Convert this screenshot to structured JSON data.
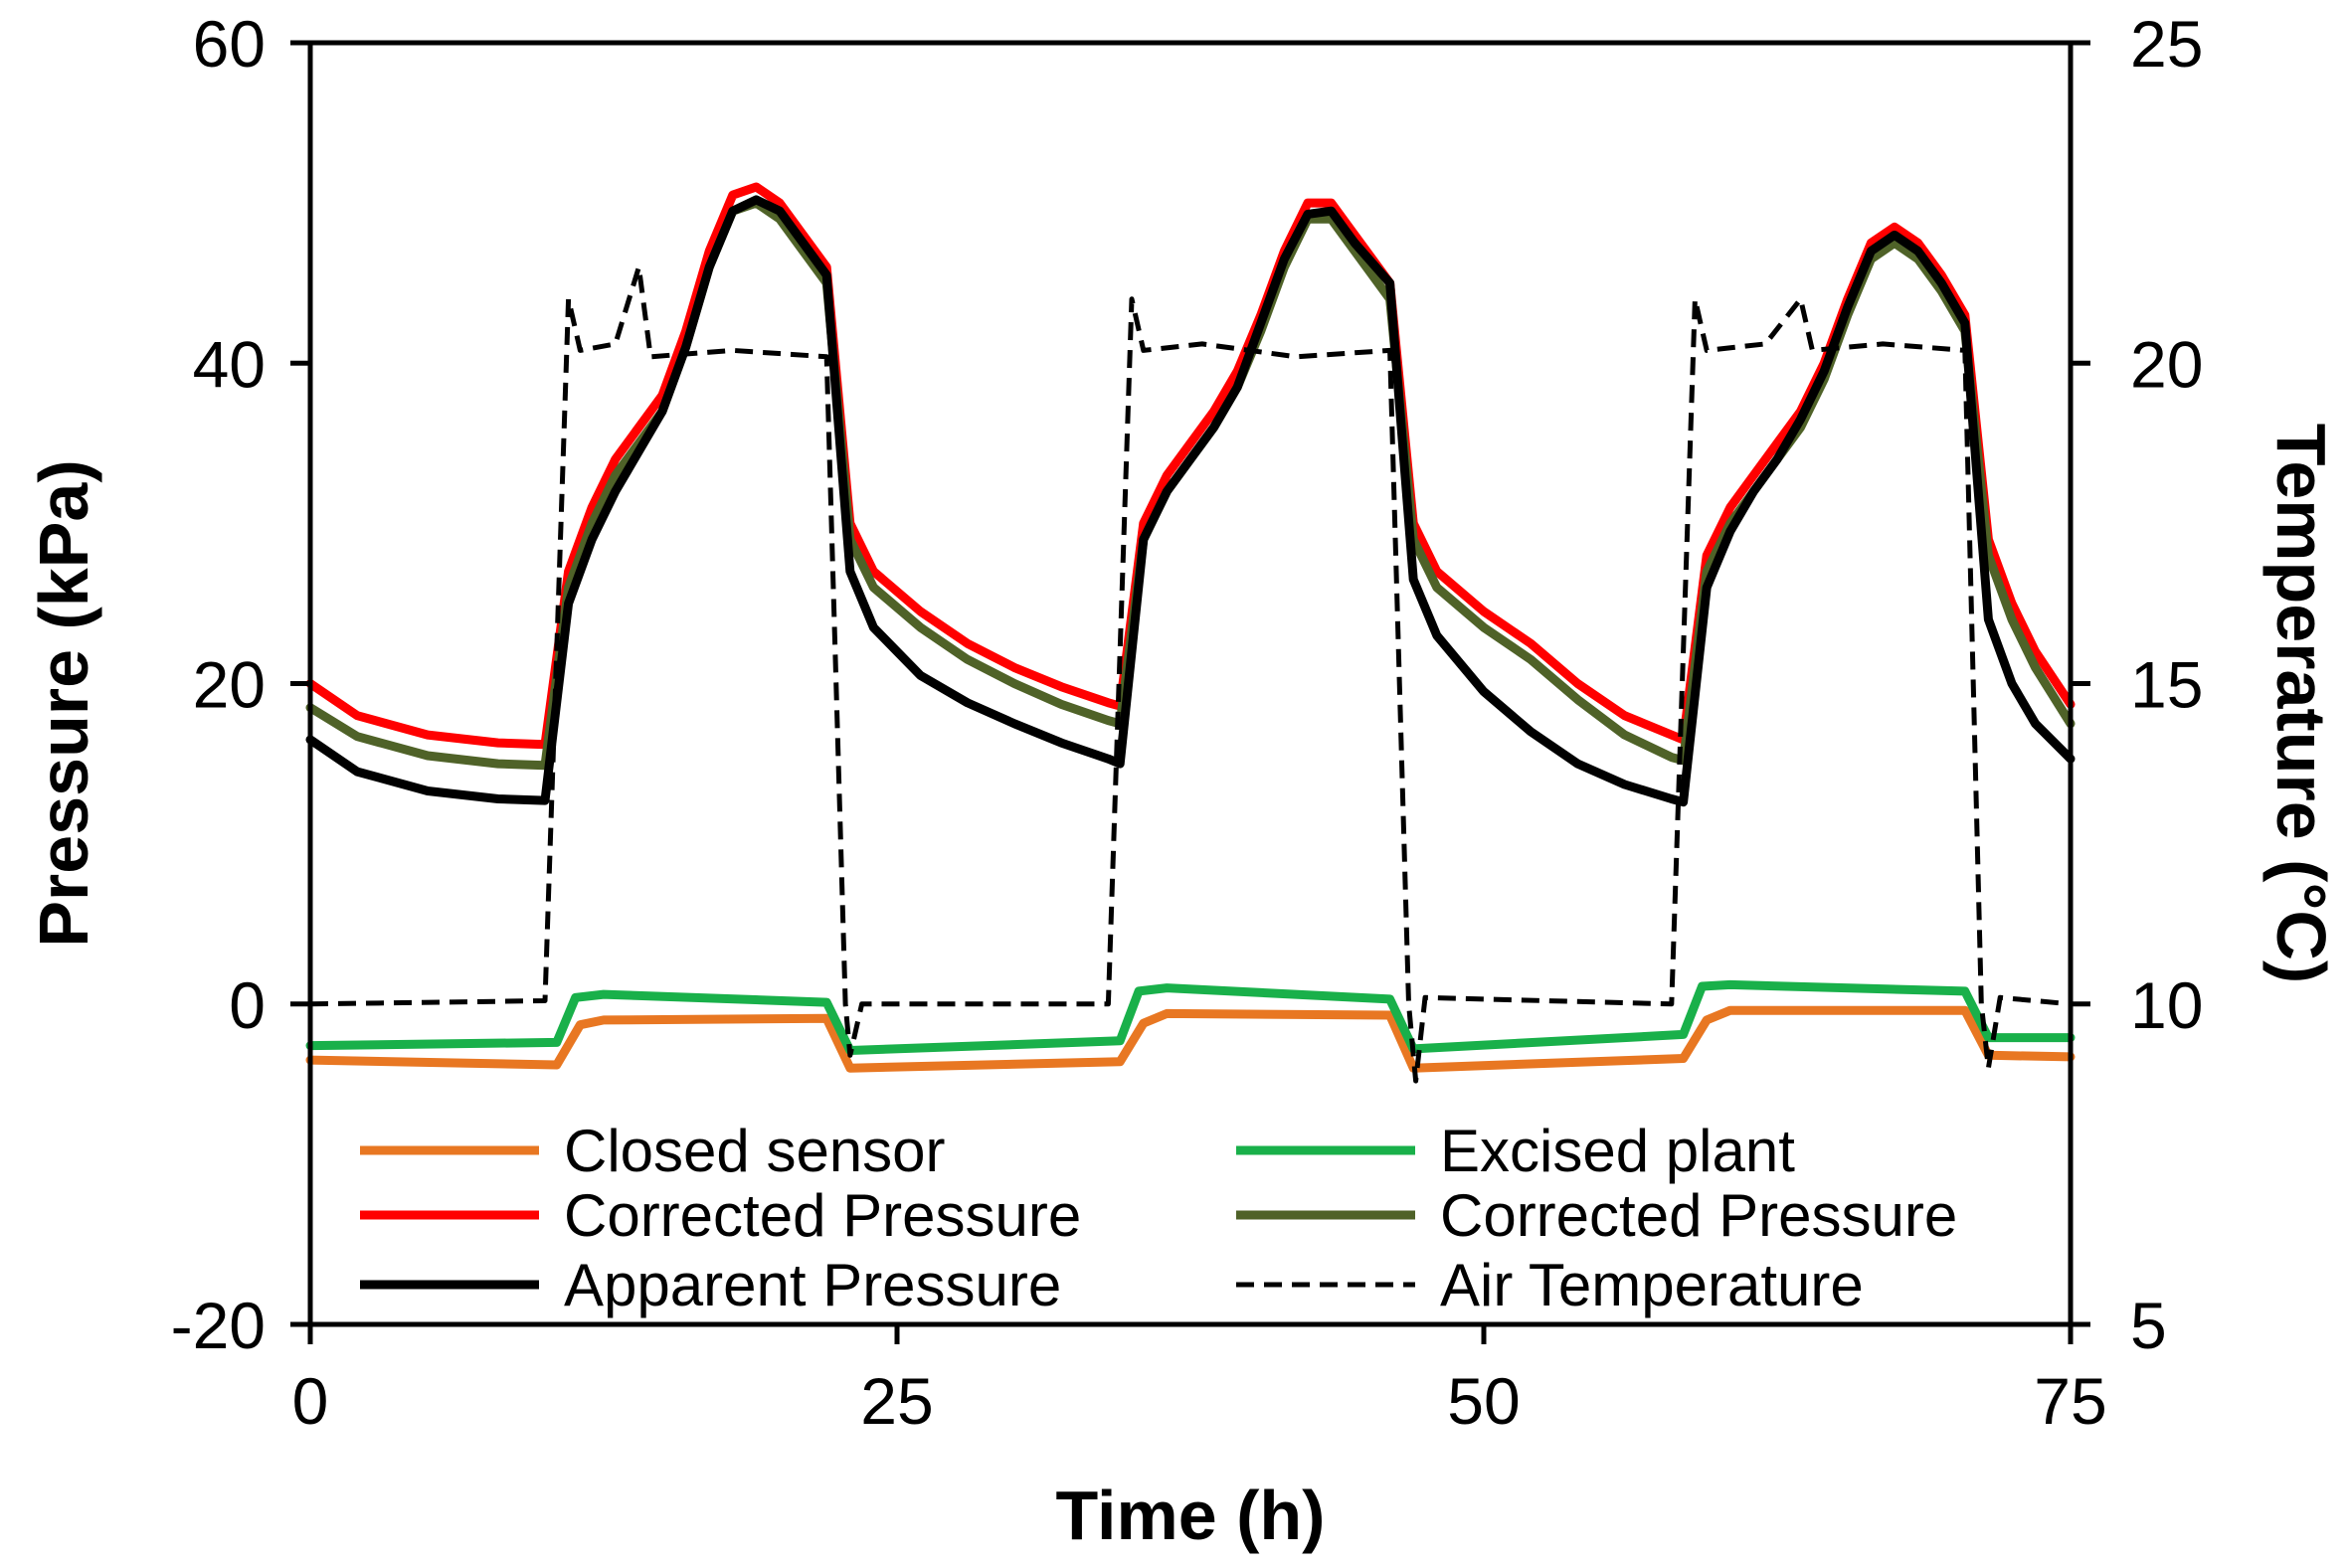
{
  "chart_data": {
    "type": "line",
    "title": "",
    "xlabel": "Time (h)",
    "ylabel": "Pressure (kPa)",
    "y2label": "Temperature (°C)",
    "xlim": [
      0,
      75
    ],
    "ylim": [
      -20,
      60
    ],
    "y2lim": [
      5,
      25
    ],
    "xticks": [
      "0",
      "25",
      "50",
      "75"
    ],
    "yticks": [
      "-20",
      "0",
      "20",
      "40",
      "60"
    ],
    "y2ticks": [
      "5",
      "10",
      "15",
      "20",
      "25"
    ],
    "grid": false,
    "legend_position": "lower-center, inside plot, two columns",
    "colors": {
      "closed_sensor": "#E87722",
      "excised_plant": "#19B04A",
      "corrected_red": "#FF0000",
      "corrected_olive": "#4F6228",
      "apparent": "#000000",
      "air_temperature": "#000000"
    },
    "series": [
      {
        "name": "Closed sensor",
        "axis": "left",
        "color": "#E87722",
        "style": "solid",
        "points": [
          [
            0,
            -3.5
          ],
          [
            10.5,
            -3.8
          ],
          [
            11.5,
            -1.3
          ],
          [
            12.5,
            -1
          ],
          [
            22,
            -0.9
          ],
          [
            23,
            -4
          ],
          [
            34.5,
            -3.6
          ],
          [
            35.5,
            -1.2
          ],
          [
            36.5,
            -0.6
          ],
          [
            46,
            -0.7
          ],
          [
            47,
            -4
          ],
          [
            58.5,
            -3.4
          ],
          [
            59.5,
            -1
          ],
          [
            60.5,
            -0.4
          ],
          [
            70.5,
            -0.4
          ],
          [
            71.5,
            -3.2
          ],
          [
            75,
            -3.3
          ]
        ]
      },
      {
        "name": "Excised plant",
        "axis": "left",
        "color": "#19B04A",
        "style": "solid",
        "points": [
          [
            0,
            -2.6
          ],
          [
            10.5,
            -2.4
          ],
          [
            11.3,
            0.4
          ],
          [
            12.5,
            0.6
          ],
          [
            22,
            0.1
          ],
          [
            23,
            -2.9
          ],
          [
            34.5,
            -2.3
          ],
          [
            35.3,
            0.8
          ],
          [
            36.5,
            1
          ],
          [
            46,
            0.3
          ],
          [
            47,
            -2.8
          ],
          [
            58.5,
            -1.9
          ],
          [
            59.3,
            1.1
          ],
          [
            60.5,
            1.2
          ],
          [
            70.5,
            0.8
          ],
          [
            71.5,
            -2.1
          ],
          [
            75,
            -2.1
          ]
        ]
      },
      {
        "name": "Corrected Pressure",
        "axis": "left",
        "color": "#FF0000",
        "style": "solid",
        "points": [
          [
            0,
            20
          ],
          [
            2,
            18
          ],
          [
            5,
            16.8
          ],
          [
            8,
            16.3
          ],
          [
            10,
            16.2
          ],
          [
            11,
            27
          ],
          [
            12,
            31
          ],
          [
            13,
            34
          ],
          [
            14,
            36
          ],
          [
            15,
            38
          ],
          [
            16,
            42
          ],
          [
            17,
            47
          ],
          [
            18,
            50.5
          ],
          [
            19,
            51
          ],
          [
            20,
            50
          ],
          [
            21,
            48
          ],
          [
            22,
            46
          ],
          [
            23,
            30
          ],
          [
            24,
            27
          ],
          [
            26,
            24.5
          ],
          [
            28,
            22.5
          ],
          [
            30,
            21
          ],
          [
            32,
            19.8
          ],
          [
            34,
            18.8
          ],
          [
            34.5,
            18.6
          ],
          [
            35.5,
            30
          ],
          [
            36.5,
            33
          ],
          [
            37.5,
            35
          ],
          [
            38.5,
            37
          ],
          [
            39.5,
            39.5
          ],
          [
            40.5,
            43
          ],
          [
            41.5,
            47
          ],
          [
            42.5,
            50
          ],
          [
            43.5,
            50
          ],
          [
            44.5,
            48
          ],
          [
            46,
            45
          ],
          [
            47,
            30
          ],
          [
            48,
            27
          ],
          [
            50,
            24.5
          ],
          [
            52,
            22.5
          ],
          [
            54,
            20
          ],
          [
            56,
            18
          ],
          [
            58,
            16.8
          ],
          [
            58.5,
            16.5
          ],
          [
            59.5,
            28
          ],
          [
            60.5,
            31
          ],
          [
            61.5,
            33
          ],
          [
            62.5,
            35
          ],
          [
            63.5,
            37
          ],
          [
            64.5,
            40
          ],
          [
            65.5,
            44
          ],
          [
            66.5,
            47.5
          ],
          [
            67.5,
            48.5
          ],
          [
            68.5,
            47.5
          ],
          [
            69.5,
            45.5
          ],
          [
            70.5,
            43
          ],
          [
            71.5,
            29
          ],
          [
            72.5,
            25
          ],
          [
            73.5,
            22
          ],
          [
            75,
            18.7
          ]
        ]
      },
      {
        "name": "Corrected Pressure",
        "axis": "left",
        "color": "#4F6228",
        "style": "solid",
        "points": [
          [
            0,
            18.5
          ],
          [
            2,
            16.7
          ],
          [
            5,
            15.5
          ],
          [
            8,
            15
          ],
          [
            10,
            14.9
          ],
          [
            11,
            26
          ],
          [
            12,
            30
          ],
          [
            13,
            33
          ],
          [
            14,
            35
          ],
          [
            15,
            37
          ],
          [
            16,
            41
          ],
          [
            17,
            46
          ],
          [
            18,
            49.5
          ],
          [
            19,
            50
          ],
          [
            20,
            49
          ],
          [
            21,
            47
          ],
          [
            22,
            45
          ],
          [
            23,
            29
          ],
          [
            24,
            26
          ],
          [
            26,
            23.5
          ],
          [
            28,
            21.5
          ],
          [
            30,
            20
          ],
          [
            32,
            18.7
          ],
          [
            34,
            17.7
          ],
          [
            34.5,
            17.5
          ],
          [
            35.5,
            29
          ],
          [
            36.5,
            32
          ],
          [
            37.5,
            34
          ],
          [
            38.5,
            36
          ],
          [
            39.5,
            38.5
          ],
          [
            40.5,
            42
          ],
          [
            41.5,
            46
          ],
          [
            42.5,
            49
          ],
          [
            43.5,
            49
          ],
          [
            44.5,
            47
          ],
          [
            46,
            44
          ],
          [
            47,
            29
          ],
          [
            48,
            26
          ],
          [
            50,
            23.5
          ],
          [
            52,
            21.5
          ],
          [
            54,
            19
          ],
          [
            56,
            16.8
          ],
          [
            58,
            15.4
          ],
          [
            58.5,
            15.2
          ],
          [
            59.5,
            27
          ],
          [
            60.5,
            30
          ],
          [
            61.5,
            32
          ],
          [
            62.5,
            34
          ],
          [
            63.5,
            36
          ],
          [
            64.5,
            39
          ],
          [
            65.5,
            43
          ],
          [
            66.5,
            46.5
          ],
          [
            67.5,
            47.5
          ],
          [
            68.5,
            46.5
          ],
          [
            69.5,
            44.5
          ],
          [
            70.5,
            42
          ],
          [
            71.5,
            28
          ],
          [
            72.5,
            24
          ],
          [
            73.5,
            21
          ],
          [
            75,
            17.5
          ]
        ]
      },
      {
        "name": "Apparent Pressure",
        "axis": "left",
        "color": "#000000",
        "style": "solid",
        "points": [
          [
            0,
            16.5
          ],
          [
            2,
            14.5
          ],
          [
            5,
            13.3
          ],
          [
            8,
            12.8
          ],
          [
            10,
            12.7
          ],
          [
            11,
            25
          ],
          [
            12,
            29
          ],
          [
            13,
            32
          ],
          [
            14,
            34.5
          ],
          [
            15,
            37
          ],
          [
            16,
            41
          ],
          [
            17,
            46
          ],
          [
            18,
            49.5
          ],
          [
            19,
            50.2
          ],
          [
            20,
            49.5
          ],
          [
            21,
            47.5
          ],
          [
            22,
            45.5
          ],
          [
            23,
            27
          ],
          [
            24,
            23.5
          ],
          [
            26,
            20.5
          ],
          [
            28,
            18.8
          ],
          [
            30,
            17.5
          ],
          [
            32,
            16.3
          ],
          [
            34,
            15.3
          ],
          [
            34.5,
            15
          ],
          [
            35.5,
            29
          ],
          [
            36.5,
            32
          ],
          [
            37.5,
            34
          ],
          [
            38.5,
            36
          ],
          [
            39.5,
            38.5
          ],
          [
            40.5,
            42.5
          ],
          [
            41.5,
            46.5
          ],
          [
            42.5,
            49.3
          ],
          [
            43.5,
            49.5
          ],
          [
            44.5,
            47.5
          ],
          [
            46,
            45
          ],
          [
            47,
            26.5
          ],
          [
            48,
            23
          ],
          [
            50,
            19.5
          ],
          [
            52,
            17
          ],
          [
            54,
            15
          ],
          [
            56,
            13.7
          ],
          [
            58,
            12.8
          ],
          [
            58.5,
            12.6
          ],
          [
            59.5,
            26
          ],
          [
            60.5,
            29.5
          ],
          [
            61.5,
            32
          ],
          [
            62.5,
            34
          ],
          [
            63.5,
            36.5
          ],
          [
            64.5,
            39.5
          ],
          [
            65.5,
            43.5
          ],
          [
            66.5,
            47
          ],
          [
            67.5,
            48
          ],
          [
            68.5,
            47
          ],
          [
            69.5,
            45
          ],
          [
            70.5,
            42.5
          ],
          [
            71.5,
            24
          ],
          [
            72.5,
            20
          ],
          [
            73.5,
            17.5
          ],
          [
            75,
            15.3
          ]
        ]
      },
      {
        "name": "Air Temperature",
        "axis": "right",
        "color": "#000000",
        "style": "dashed",
        "points": [
          [
            0,
            10
          ],
          [
            10,
            10.05
          ],
          [
            11,
            21
          ],
          [
            11.5,
            20.2
          ],
          [
            13,
            20.3
          ],
          [
            14,
            21.5
          ],
          [
            14.5,
            20.1
          ],
          [
            18,
            20.2
          ],
          [
            22,
            20.1
          ],
          [
            22.8,
            10
          ],
          [
            23,
            9.2
          ],
          [
            23.5,
            10
          ],
          [
            34,
            10
          ],
          [
            35,
            21
          ],
          [
            35.5,
            20.2
          ],
          [
            38,
            20.3
          ],
          [
            42,
            20.1
          ],
          [
            46,
            20.2
          ],
          [
            46.8,
            10
          ],
          [
            47.1,
            8.8
          ],
          [
            47.5,
            10.1
          ],
          [
            58,
            10
          ],
          [
            59,
            21
          ],
          [
            59.5,
            20.2
          ],
          [
            62,
            20.3
          ],
          [
            63.5,
            21
          ],
          [
            64,
            20.2
          ],
          [
            67,
            20.3
          ],
          [
            70.5,
            20.2
          ],
          [
            71.2,
            10
          ],
          [
            71.5,
            9
          ],
          [
            72,
            10.1
          ],
          [
            75,
            10
          ]
        ]
      }
    ]
  }
}
